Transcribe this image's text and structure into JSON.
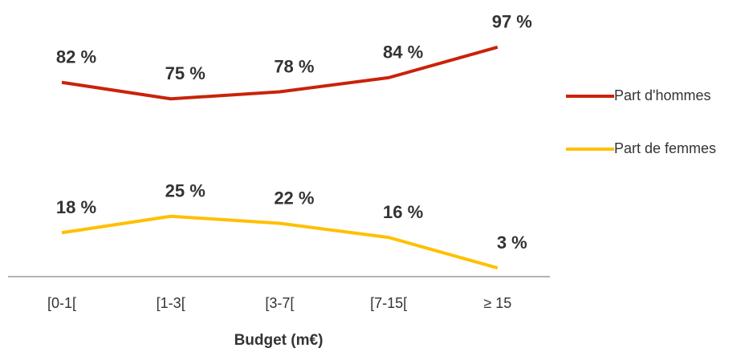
{
  "chart_data": {
    "type": "line",
    "x_label": "Budget (m€)",
    "categories": [
      "[0-1[",
      "[1-3[",
      "[3-7[",
      "[7-15[",
      "≥ 15"
    ],
    "series": [
      {
        "name": "Part d'hommes",
        "color": "#c9230a",
        "values": [
          82,
          75,
          78,
          84,
          97
        ],
        "value_labels": [
          "82 %",
          "75 %",
          "78 %",
          "84 %",
          "97 %"
        ]
      },
      {
        "name": "Part de femmes",
        "color": "#ffc000",
        "values": [
          18,
          25,
          22,
          16,
          3
        ],
        "value_labels": [
          "18 %",
          "25 %",
          "22 %",
          "16 %",
          "3 %"
        ]
      }
    ],
    "ylim": [
      0,
      100
    ],
    "legend": "right"
  }
}
